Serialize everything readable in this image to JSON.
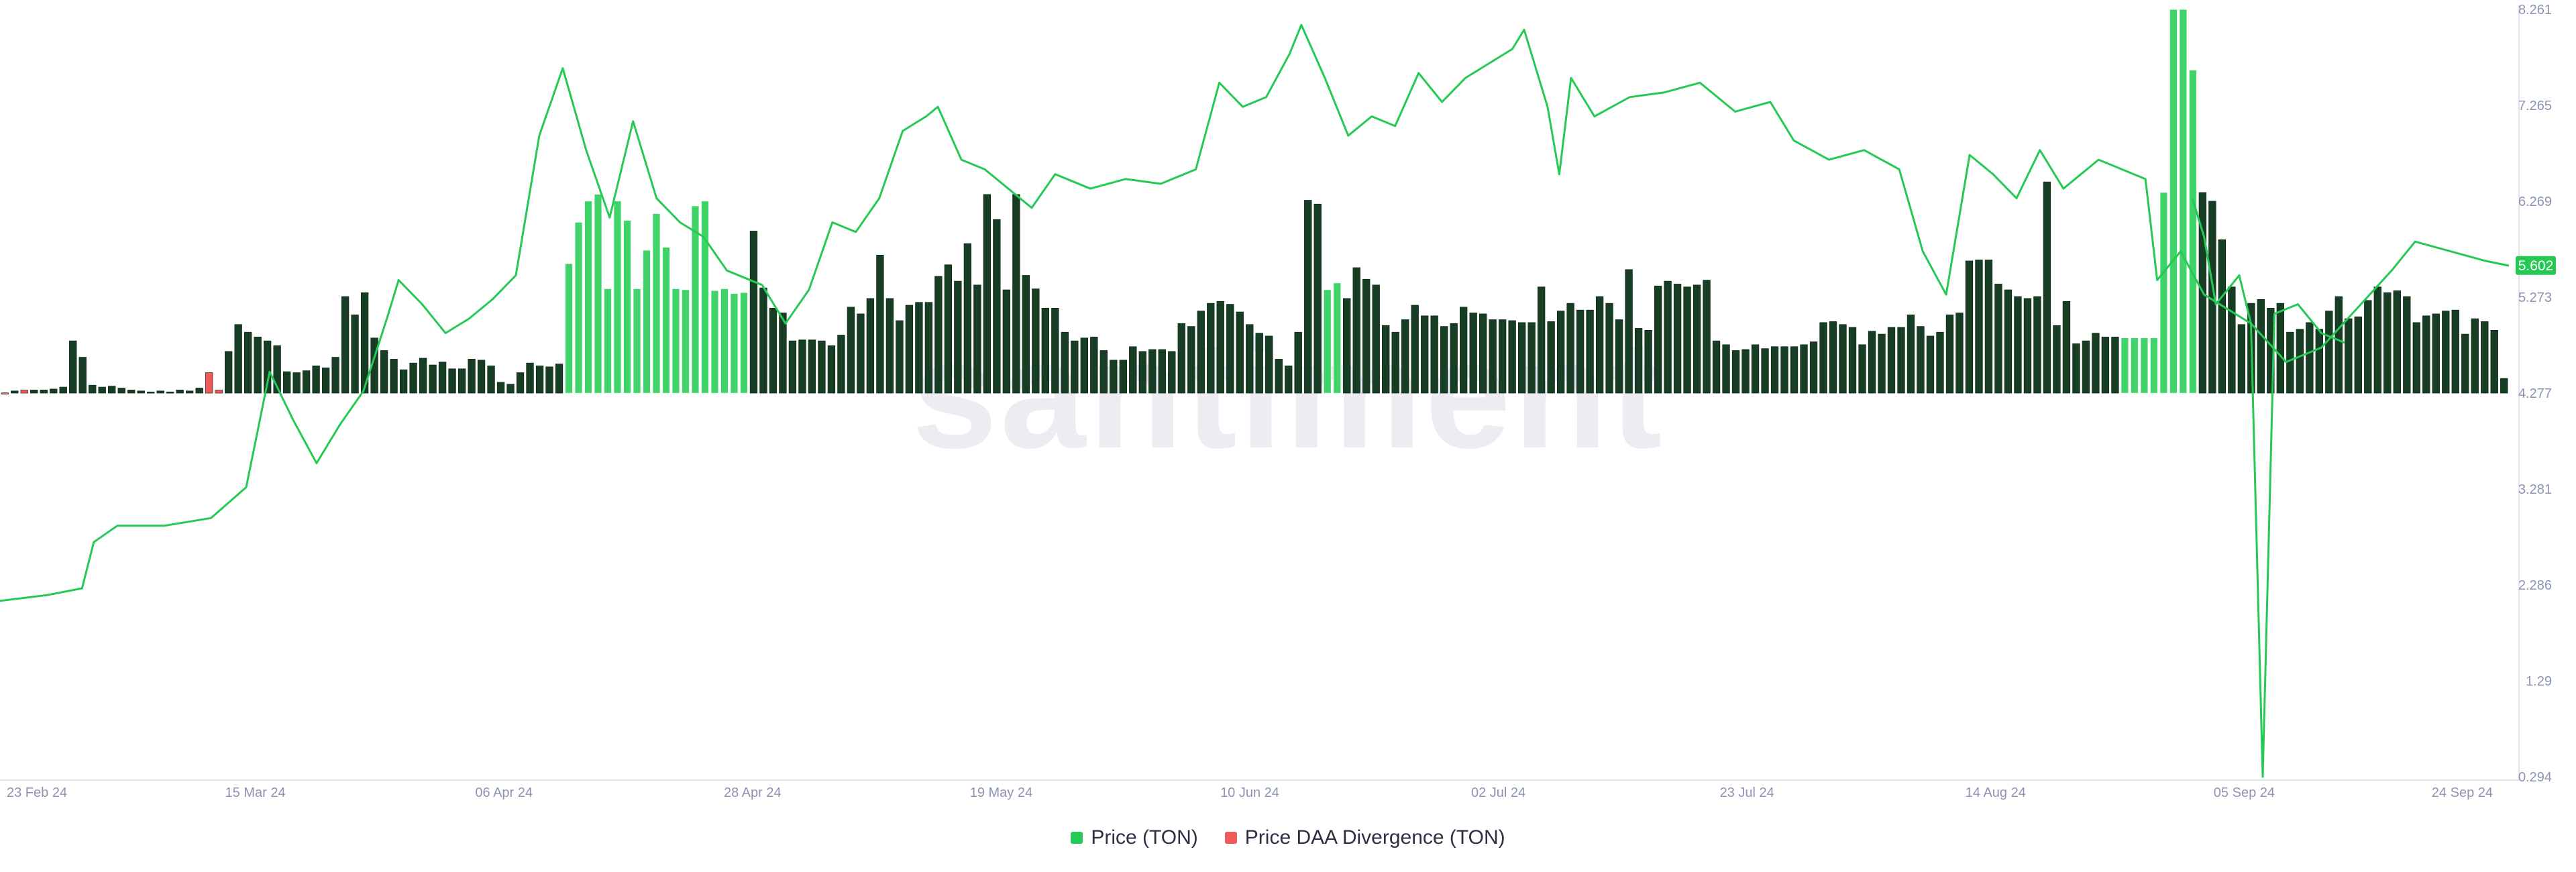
{
  "watermark": "santiment",
  "colors": {
    "price": "#26c953",
    "divergence_negative": "#ef5a5a",
    "divergence_bar_dark": "#173d24",
    "divergence_bar_bright": "#3fd36a",
    "axis_text": "#8c93b3",
    "axis_line": "#dfe3ee",
    "price_tag_bg": "#26c953",
    "price_tag_text": "#ffffff"
  },
  "legend": {
    "price_label": "Price (TON)",
    "divergence_label": "Price DAA Divergence (TON)"
  },
  "price_tag": "5.602",
  "chart_data": {
    "type": "line",
    "x_ticks": [
      "23 Feb 24",
      "15 Mar 24",
      "06 Apr 24",
      "28 Apr 24",
      "19 May 24",
      "10 Jun 24",
      "02 Jul 24",
      "23 Jul 24",
      "14 Aug 24",
      "05 Sep 24",
      "24 Sep 24"
    ],
    "y_ticks": [
      "0.294",
      "1.29",
      "2.286",
      "3.281",
      "4.277",
      "5.273",
      "6.269",
      "7.265",
      "8.261"
    ],
    "ylim": [
      0.294,
      8.261
    ],
    "x_start": "2024-02-23",
    "x_end": "2024-09-24",
    "divergence_baseline": 4.277,
    "series": [
      {
        "name": "Price (TON)",
        "type": "line",
        "points": [
          [
            "2024-02-23",
            2.12
          ],
          [
            "2024-02-27",
            2.18
          ],
          [
            "2024-03-01",
            2.25
          ],
          [
            "2024-03-02",
            2.73
          ],
          [
            "2024-03-04",
            2.9
          ],
          [
            "2024-03-08",
            2.9
          ],
          [
            "2024-03-12",
            2.98
          ],
          [
            "2024-03-15",
            3.3
          ],
          [
            "2024-03-17",
            4.5
          ],
          [
            "2024-03-19",
            4.0
          ],
          [
            "2024-03-21",
            3.55
          ],
          [
            "2024-03-23",
            3.95
          ],
          [
            "2024-03-25",
            4.3
          ],
          [
            "2024-03-27",
            5.05
          ],
          [
            "2024-03-28",
            5.45
          ],
          [
            "2024-03-30",
            5.2
          ],
          [
            "2024-04-01",
            4.9
          ],
          [
            "2024-04-03",
            5.05
          ],
          [
            "2024-04-05",
            5.25
          ],
          [
            "2024-04-07",
            5.5
          ],
          [
            "2024-04-09",
            6.95
          ],
          [
            "2024-04-11",
            7.65
          ],
          [
            "2024-04-13",
            6.8
          ],
          [
            "2024-04-15",
            6.1
          ],
          [
            "2024-04-17",
            7.1
          ],
          [
            "2024-04-19",
            6.3
          ],
          [
            "2024-04-21",
            6.05
          ],
          [
            "2024-04-23",
            5.9
          ],
          [
            "2024-04-25",
            5.55
          ],
          [
            "2024-04-28",
            5.4
          ],
          [
            "2024-04-30",
            5.0
          ],
          [
            "2024-05-02",
            5.35
          ],
          [
            "2024-05-04",
            6.05
          ],
          [
            "2024-05-06",
            5.95
          ],
          [
            "2024-05-08",
            6.3
          ],
          [
            "2024-05-10",
            7.0
          ],
          [
            "2024-05-12",
            7.15
          ],
          [
            "2024-05-13",
            7.25
          ],
          [
            "2024-05-15",
            6.7
          ],
          [
            "2024-05-17",
            6.6
          ],
          [
            "2024-05-19",
            6.4
          ],
          [
            "2024-05-21",
            6.2
          ],
          [
            "2024-05-23",
            6.55
          ],
          [
            "2024-05-26",
            6.4
          ],
          [
            "2024-05-29",
            6.5
          ],
          [
            "2024-06-01",
            6.45
          ],
          [
            "2024-06-04",
            6.6
          ],
          [
            "2024-06-06",
            7.5
          ],
          [
            "2024-06-08",
            7.25
          ],
          [
            "2024-06-10",
            7.35
          ],
          [
            "2024-06-12",
            7.8
          ],
          [
            "2024-06-13",
            8.1
          ],
          [
            "2024-06-15",
            7.55
          ],
          [
            "2024-06-17",
            6.95
          ],
          [
            "2024-06-19",
            7.15
          ],
          [
            "2024-06-21",
            7.05
          ],
          [
            "2024-06-23",
            7.6
          ],
          [
            "2024-06-25",
            7.3
          ],
          [
            "2024-06-27",
            7.55
          ],
          [
            "2024-06-29",
            7.7
          ],
          [
            "2024-07-01",
            7.85
          ],
          [
            "2024-07-02",
            8.05
          ],
          [
            "2024-07-04",
            7.25
          ],
          [
            "2024-07-05",
            6.55
          ],
          [
            "2024-07-06",
            7.55
          ],
          [
            "2024-07-08",
            7.15
          ],
          [
            "2024-07-11",
            7.35
          ],
          [
            "2024-07-14",
            7.4
          ],
          [
            "2024-07-17",
            7.5
          ],
          [
            "2024-07-20",
            7.2
          ],
          [
            "2024-07-23",
            7.3
          ],
          [
            "2024-07-25",
            6.9
          ],
          [
            "2024-07-28",
            6.7
          ],
          [
            "2024-07-31",
            6.8
          ],
          [
            "2024-08-03",
            6.6
          ],
          [
            "2024-08-05",
            5.75
          ],
          [
            "2024-08-07",
            5.3
          ],
          [
            "2024-08-09",
            6.75
          ],
          [
            "2024-08-11",
            6.55
          ],
          [
            "2024-08-13",
            6.3
          ],
          [
            "2024-08-15",
            6.8
          ],
          [
            "2024-08-17",
            6.4
          ],
          [
            "2024-08-20",
            6.7
          ],
          [
            "2024-08-22",
            6.6
          ],
          [
            "2024-08-24",
            6.5
          ],
          [
            "2024-08-25",
            5.45
          ],
          [
            "2024-08-27",
            5.75
          ],
          [
            "2024-08-29",
            5.3
          ],
          [
            "2024-09-02",
            5.0
          ],
          [
            "2024-09-05",
            4.6
          ],
          [
            "2024-09-08",
            4.75
          ],
          [
            "2024-09-11",
            5.15
          ],
          [
            "2024-09-14",
            5.55
          ],
          [
            "2024-09-16",
            5.85
          ],
          [
            "2024-09-19",
            5.75
          ],
          [
            "2024-09-22",
            5.65
          ],
          [
            "2024-09-24",
            5.6
          ]
        ]
      },
      {
        "name": "Price DAA Divergence (TON)",
        "type": "bar",
        "values": [
          4.28,
          4.3,
          4.31,
          4.31,
          4.31,
          4.32,
          4.34,
          4.82,
          4.65,
          4.36,
          4.34,
          4.35,
          4.33,
          4.31,
          4.3,
          4.29,
          4.3,
          4.29,
          4.31,
          4.3,
          4.33,
          4.49,
          4.31,
          4.71,
          4.99,
          4.91,
          4.86,
          4.82,
          4.77,
          4.5,
          4.49,
          4.51,
          4.56,
          4.54,
          4.65,
          5.28,
          5.09,
          5.32,
          4.85,
          4.72,
          4.63,
          4.52,
          4.59,
          4.64,
          4.57,
          4.6,
          4.53,
          4.53,
          4.63,
          4.62,
          4.56,
          4.39,
          4.37,
          4.49,
          4.59,
          4.56,
          4.55,
          4.58,
          5.62,
          6.05,
          6.27,
          6.34,
          5.36,
          6.27,
          6.07,
          5.36,
          5.76,
          6.14,
          5.79,
          5.36,
          5.35,
          6.22,
          6.27,
          5.34,
          5.36,
          5.31,
          5.32,
          5.96,
          5.37,
          5.16,
          5.11,
          4.82,
          4.83,
          4.83,
          4.82,
          4.77,
          4.88,
          5.17,
          5.1,
          5.26,
          5.71,
          5.26,
          5.03,
          5.19,
          5.22,
          5.22,
          5.49,
          5.61,
          5.44,
          5.83,
          5.4,
          6.34,
          6.08,
          5.35,
          6.34,
          5.5,
          5.36,
          5.16,
          5.16,
          4.91,
          4.82,
          4.85,
          4.86,
          4.72,
          4.62,
          4.62,
          4.76,
          4.71,
          4.73,
          4.73,
          4.71,
          5.0,
          4.97,
          5.13,
          5.21,
          5.23,
          5.2,
          5.12,
          4.99,
          4.9,
          4.87,
          4.63,
          4.56,
          4.91,
          6.28,
          6.24,
          5.35,
          5.42,
          5.26,
          5.58,
          5.46,
          5.4,
          4.98,
          4.91,
          5.04,
          5.19,
          5.08,
          5.08,
          4.97,
          5.0,
          5.17,
          5.11,
          5.1,
          5.04,
          5.04,
          5.03,
          5.01,
          5.01,
          5.38,
          5.02,
          5.13,
          5.21,
          5.14,
          5.14,
          5.28,
          5.21,
          5.04,
          5.56,
          4.95,
          4.93,
          5.39,
          5.44,
          5.41,
          5.38,
          5.4,
          5.45,
          4.82,
          4.78,
          4.72,
          4.73,
          4.78,
          4.74,
          4.76,
          4.76,
          4.76,
          4.78,
          4.81,
          5.01,
          5.02,
          4.99,
          4.96,
          4.78,
          4.92,
          4.89,
          4.96,
          4.96,
          5.09,
          4.97,
          4.87,
          4.91,
          5.09,
          5.11,
          5.65,
          5.66,
          5.66,
          5.41,
          5.35,
          5.28,
          5.26,
          5.28,
          6.47,
          4.98,
          5.23,
          4.79,
          4.82,
          4.9,
          4.86,
          4.86,
          4.85,
          4.85,
          4.85,
          4.85,
          6.36,
          8.26,
          8.26,
          7.63,
          6.36,
          6.27,
          5.87,
          5.38,
          4.99,
          5.21,
          5.25,
          5.16,
          5.21,
          4.91,
          4.94,
          5.01,
          4.94,
          5.13,
          5.28,
          5.05,
          5.07,
          5.24,
          5.38,
          5.32,
          5.34,
          5.28,
          5.01,
          5.08,
          5.1,
          5.13,
          5.14,
          4.89,
          5.05,
          5.02,
          4.93,
          4.43
        ],
        "bright_bars": [
          [
            58,
            76
          ],
          [
            136,
            137
          ],
          [
            218,
            225
          ]
        ],
        "negative_bars": [
          0,
          2,
          21,
          22
        ]
      },
      {
        "name": "Price DAA Divergence (TON) line",
        "type": "line",
        "points": [
          [
            "2024-08-28",
            6.3
          ],
          [
            "2024-08-29",
            5.9
          ],
          [
            "2024-08-30",
            5.2
          ],
          [
            "2024-09-01",
            5.5
          ],
          [
            "2024-09-02",
            5.0
          ],
          [
            "2024-09-03",
            0.294
          ],
          [
            "2024-09-04",
            5.1
          ],
          [
            "2024-09-06",
            5.2
          ],
          [
            "2024-09-08",
            4.9
          ],
          [
            "2024-09-10",
            4.8
          ]
        ]
      }
    ]
  }
}
